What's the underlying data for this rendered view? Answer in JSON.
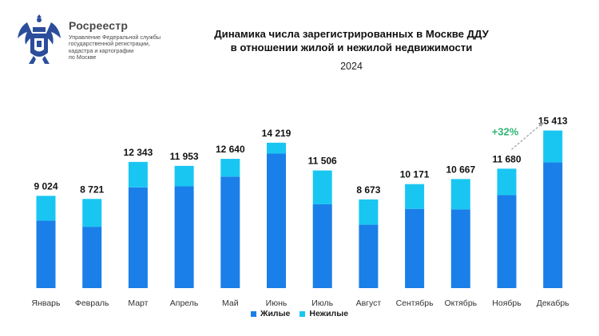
{
  "header": {
    "org_name": "Росреестр",
    "org_desc": "Управление Федеральной службы\nгосударственной регистрации,\nкадастра и картографии\nпо Москве",
    "title": "Динамика числа зарегистрированных в Москве ДДУ\nв отношении жилой и нежилой недвижимости",
    "year": "2024"
  },
  "colors": {
    "residential": "#1a7fe8",
    "nonresidential": "#19c6f2",
    "growth": "#2fb574",
    "arrow": "#9aa0a6",
    "logo": "#2b4d9b"
  },
  "chart_data": {
    "type": "bar",
    "stacked": true,
    "categories": [
      "Январь",
      "Февраль",
      "Март",
      "Апрель",
      "Май",
      "Июнь",
      "Июль",
      "Август",
      "Сентябрь",
      "Октябрь",
      "Ноябрь",
      "Декабрь"
    ],
    "totals": [
      "9 024",
      "8 721",
      "12 343",
      "11 953",
      "12 640",
      "14 219",
      "11 506",
      "8 673",
      "10 171",
      "10 667",
      "11 680",
      "15 413"
    ],
    "series": [
      {
        "name": "Жилые",
        "values": [
          6600,
          6000,
          9850,
          9950,
          10900,
          13150,
          8200,
          6200,
          7750,
          7700,
          9100,
          12300
        ]
      },
      {
        "name": "Нежилые",
        "values": [
          2424,
          2721,
          2493,
          2003,
          1740,
          1069,
          3306,
          2473,
          2421,
          2967,
          2580,
          3113
        ]
      }
    ],
    "ylim": [
      0,
      16000
    ],
    "grid": false,
    "legend": "bottom-center",
    "annotation": {
      "text": "+32%",
      "from": "Ноябрь",
      "to": "Декабрь"
    }
  }
}
